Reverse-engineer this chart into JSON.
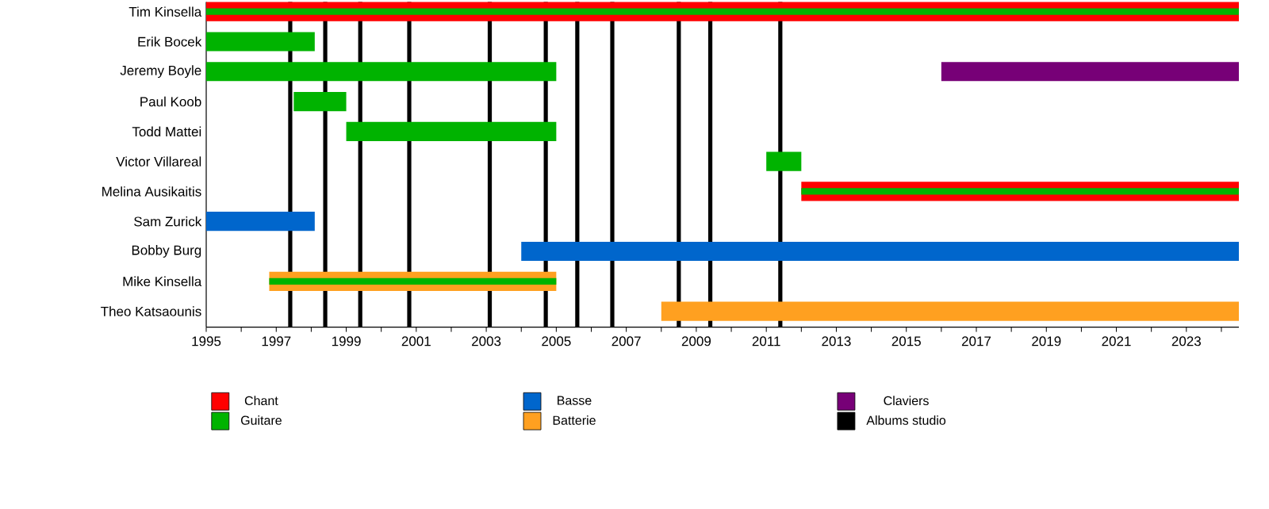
{
  "chart_data": {
    "type": "bar",
    "orientation": "horizontal",
    "legend": "bottom",
    "categories": [
      "Tim Kinsella",
      "Erik Bocek",
      "Jeremy Boyle",
      "Paul Koob",
      "Todd Mattei",
      "Victor Villareal",
      "Melina Ausikaitis",
      "Sam Zurick",
      "Bobby Burg",
      "Mike Kinsella",
      "Theo Katsaounis"
    ],
    "series": [
      {
        "name": "Chant",
        "color": "#ff0000",
        "base": [
          1995,
          null,
          null,
          null,
          null,
          null,
          2012,
          null,
          null,
          null,
          null
        ],
        "values": [
          29.5,
          null,
          null,
          null,
          null,
          null,
          12.5,
          null,
          null,
          null,
          null
        ]
      },
      {
        "name": "Guitare",
        "color": "#00b300",
        "base": [
          1995,
          1995,
          1995,
          1997.5,
          1999,
          2011,
          2012,
          null,
          null,
          1996.8,
          null
        ],
        "values": [
          29.5,
          3.1,
          10,
          1.5,
          6,
          1,
          12.5,
          null,
          null,
          8.2,
          null
        ]
      },
      {
        "name": "Basse",
        "color": "#0066cc",
        "base": [
          null,
          null,
          null,
          null,
          null,
          null,
          null,
          1995,
          2004,
          null,
          null
        ],
        "values": [
          null,
          null,
          null,
          null,
          null,
          null,
          null,
          3.1,
          20.5,
          null,
          null
        ]
      },
      {
        "name": "Batterie",
        "color": "#ffa020",
        "base": [
          null,
          null,
          null,
          null,
          null,
          null,
          null,
          null,
          null,
          1996.8,
          2008
        ],
        "values": [
          null,
          null,
          null,
          null,
          null,
          null,
          null,
          null,
          null,
          8.2,
          16.5
        ]
      },
      {
        "name": "Claviers",
        "color": "#770077",
        "base": [
          null,
          null,
          2016,
          null,
          null,
          null,
          null,
          null,
          null,
          null,
          null
        ],
        "values": [
          null,
          null,
          8.5,
          null,
          null,
          null,
          null,
          null,
          null,
          null,
          null
        ]
      }
    ],
    "ref_lines": [
      {
        "axis": "x",
        "value": 1997.4,
        "label": "Albums studio",
        "color": "#000000"
      },
      {
        "axis": "x",
        "value": 1998.4,
        "color": "#000000"
      },
      {
        "axis": "x",
        "value": 1999.4,
        "color": "#000000"
      },
      {
        "axis": "x",
        "value": 2000.8,
        "color": "#000000"
      },
      {
        "axis": "x",
        "value": 2003.1,
        "color": "#000000"
      },
      {
        "axis": "x",
        "value": 2004.7,
        "color": "#000000"
      },
      {
        "axis": "x",
        "value": 2005.6,
        "color": "#000000"
      },
      {
        "axis": "x",
        "value": 2006.6,
        "color": "#000000"
      },
      {
        "axis": "x",
        "value": 2008.5,
        "color": "#000000"
      },
      {
        "axis": "x",
        "value": 2009.4,
        "color": "#000000"
      },
      {
        "axis": "x",
        "value": 2011.4,
        "color": "#000000"
      }
    ],
    "xlim": [
      1995,
      2024.5
    ],
    "xticks": [
      1995,
      {
        "value": 1996,
        "label": null
      },
      1997,
      {
        "value": 1998,
        "label": null
      },
      1999,
      {
        "value": 2000,
        "label": null
      },
      2001,
      {
        "value": 2002,
        "label": null
      },
      2003,
      {
        "value": 2004,
        "label": null
      },
      2005,
      {
        "value": 2006,
        "label": null
      },
      2007,
      {
        "value": 2008,
        "label": null
      },
      2009,
      {
        "value": 2010,
        "label": null
      },
      2011,
      {
        "value": 2012,
        "label": null
      },
      2013,
      {
        "value": 2014,
        "label": null
      },
      2015,
      {
        "value": 2016,
        "label": null
      },
      2017,
      {
        "value": 2018,
        "label": null
      },
      2019,
      {
        "value": 2020,
        "label": null
      },
      2021,
      {
        "value": 2022,
        "label": null
      },
      2023,
      {
        "value": 2024,
        "label": null
      }
    ]
  }
}
